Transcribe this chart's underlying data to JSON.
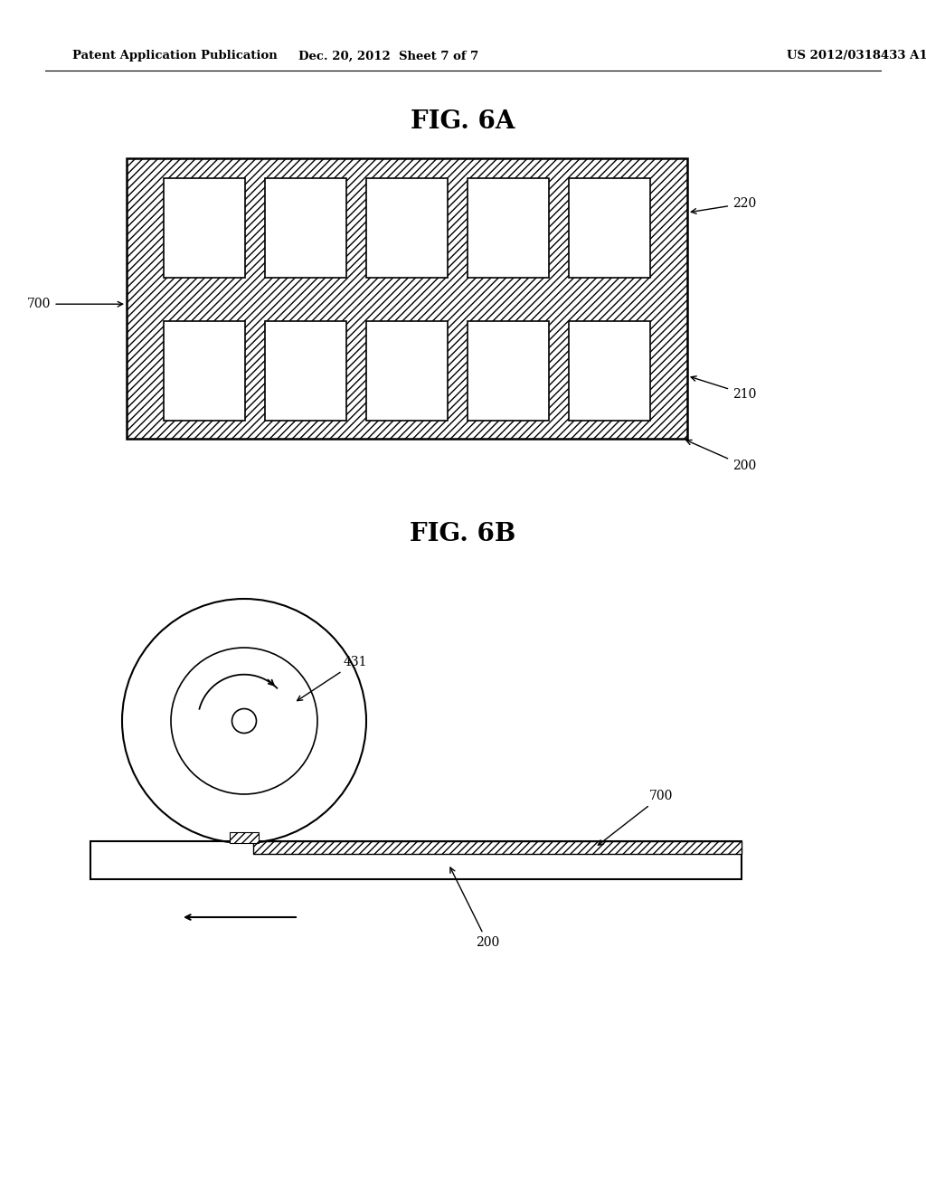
{
  "bg_color": "#ffffff",
  "header_left": "Patent Application Publication",
  "header_center": "Dec. 20, 2012  Sheet 7 of 7",
  "header_right": "US 2012/0318433 A1",
  "fig6a_title": "FIG. 6A",
  "fig6b_title": "FIG. 6B",
  "label_200": "200",
  "label_210": "210",
  "label_220": "220",
  "label_700_6a": "700",
  "label_431": "431",
  "label_700_6b": "700",
  "label_200_6b": "200"
}
